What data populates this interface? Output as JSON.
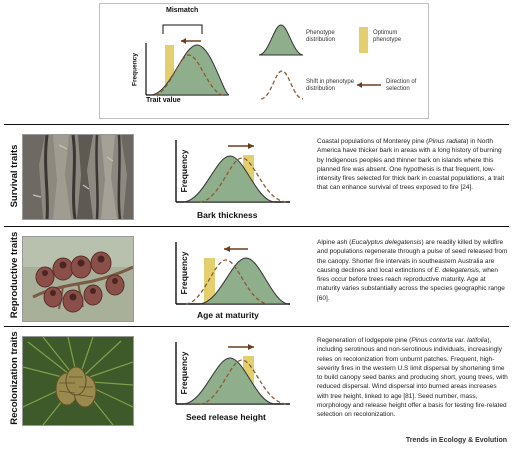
{
  "colors": {
    "phenotype_fill": "#8fae8c",
    "optimum_bar": "#e3cf6e",
    "shift_curve": "#8a5a34",
    "arrow": "#6b3d1e",
    "divider": "#111111"
  },
  "legend": {
    "mismatch": "Mismatch",
    "ylabel": "Frequency",
    "xlabel": "Trait value",
    "phenotype_distribution": "Phenotype distribution",
    "optimum_phenotype": "Optimum phenotype",
    "shift_in_phenotype_distribution": "Shift in phenotype distribution",
    "direction_of_selection": "Direction of selection"
  },
  "rows": [
    {
      "category": "Survival traits",
      "ylabel": "Frequency",
      "xlabel": "Bark thickness",
      "photo_subject": "pine bark",
      "description": [
        {
          "t": "Coastal populations of Monterey pine ("
        },
        {
          "t": "Pinus radiata",
          "i": true
        },
        {
          "t": ") in North America have thicker bark in areas with a long history of burning by Indigenous peoples and thinner bark on islands where this planned fire was absent. One hypothesis is that frequent, low-intensity fires selected for thick bark in coastal populations, a trait that can enhance survival of trees exposed to fire [24]."
        }
      ]
    },
    {
      "category": "Reproductive traits",
      "ylabel": "Frequency",
      "xlabel": "Age at maturity",
      "photo_subject": "eucalyptus seed capsules",
      "description": [
        {
          "t": "Alpine ash ("
        },
        {
          "t": "Eucalyptus delegatensis",
          "i": true
        },
        {
          "t": ") are readily killed by wildfire and populations regenerate through a pulse of seed released from the canopy. Shorter fire intervals in southeastern Australia are causing declines and local extinctions of "
        },
        {
          "t": "E. delegatensis",
          "i": true
        },
        {
          "t": ", when fires occur before trees reach reproductive maturity. Age at maturity varies substantially across the species geographic range [60]."
        }
      ]
    },
    {
      "category": "Recolonization traits",
      "ylabel": "Frequency",
      "xlabel": "Seed release height",
      "photo_subject": "lodgepole pine cones",
      "description": [
        {
          "t": "Regeneration of lodgepole pine ("
        },
        {
          "t": "Pinus contorta var. latifolia",
          "i": true
        },
        {
          "t": "), including serotinous and non-serotinous individuals, increasingly relies on recolonization from unburnt patches. Frequent, high-severity fires in the western U.S limit dispersal by shortening time to build canopy seed banks and producing short, young trees, with reduced dispersal. Wind dispersal into burned areas increases with tree height, linked to age [81]. Seed number, mass, morphology and release height offer a basis for testing fire-related selection on recolonization."
        }
      ]
    }
  ],
  "footer": "Trends in Ecology & Evolution"
}
